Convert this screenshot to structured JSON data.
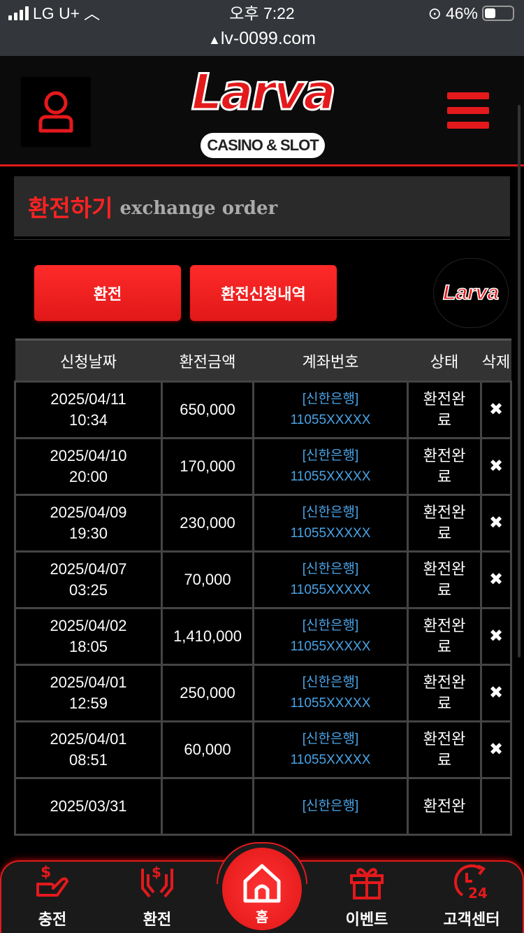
{
  "status_bar": {
    "carrier": "LG U+",
    "time": "오후 7:22",
    "battery": "46%",
    "url": "lv-0099.com",
    "battery_level": 0.46
  },
  "header": {
    "logo_text": "Larva",
    "logo_sub": "CASINO & SLOT"
  },
  "title": {
    "korean": "환전하기",
    "english": "exchange order"
  },
  "buttons": {
    "exchange": "환전",
    "history": "환전신청내역"
  },
  "table": {
    "columns": [
      "신청날짜",
      "환전금액",
      "계좌번호",
      "상태",
      "삭제"
    ],
    "rows": [
      {
        "date": "2025/04/11",
        "time": "10:34",
        "amount": "650,000",
        "bank": "[신한은행]",
        "account": "11055XXXXX",
        "status": "환전완료",
        "delete": "✖"
      },
      {
        "date": "2025/04/10",
        "time": "20:00",
        "amount": "170,000",
        "bank": "[신한은행]",
        "account": "11055XXXXX",
        "status": "환전완료",
        "delete": "✖"
      },
      {
        "date": "2025/04/09",
        "time": "19:30",
        "amount": "230,000",
        "bank": "[신한은행]",
        "account": "11055XXXXX",
        "status": "환전완료",
        "delete": "✖"
      },
      {
        "date": "2025/04/07",
        "time": "03:25",
        "amount": "70,000",
        "bank": "[신한은행]",
        "account": "11055XXXXX",
        "status": "환전완료",
        "delete": "✖"
      },
      {
        "date": "2025/04/02",
        "time": "18:05",
        "amount": "1,410,000",
        "bank": "[신한은행]",
        "account": "11055XXXXX",
        "status": "환전완료",
        "delete": "✖"
      },
      {
        "date": "2025/04/01",
        "time": "12:59",
        "amount": "250,000",
        "bank": "[신한은행]",
        "account": "11055XXXXX",
        "status": "환전완료",
        "delete": "✖"
      },
      {
        "date": "2025/04/01",
        "time": "08:51",
        "amount": "60,000",
        "bank": "[신한은행]",
        "account": "11055XXXXX",
        "status": "환전완료",
        "delete": "✖"
      },
      {
        "date": "2025/03/31",
        "time": "",
        "amount": "",
        "bank": "[신한은행]",
        "account": "",
        "status": "환전완",
        "delete": ""
      }
    ]
  },
  "float_button": {
    "label": "Larva"
  },
  "bottom_nav": [
    {
      "label": "충전",
      "icon": "deposit-icon"
    },
    {
      "label": "환전",
      "icon": "withdraw-icon"
    },
    {
      "label": "홈",
      "icon": "home-icon"
    },
    {
      "label": "이벤트",
      "icon": "gift-icon"
    },
    {
      "label": "고객센터",
      "icon": "support-24-icon"
    }
  ],
  "colors": {
    "accent": "#e4191c",
    "account_text": "#4aa3e6",
    "background": "#000000"
  }
}
